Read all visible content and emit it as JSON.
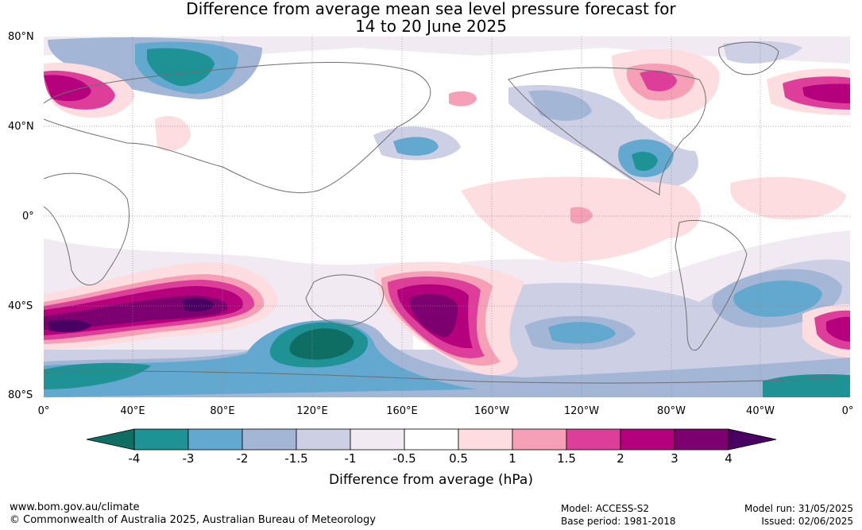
{
  "title": {
    "line1": "Difference from average mean sea level pressure forecast for",
    "line2": "14 to 20 June 2025"
  },
  "map": {
    "lat_labels": [
      "80°N",
      "40°N",
      "0°",
      "40°S",
      "80°S"
    ],
    "lon_labels": [
      "0°",
      "40°E",
      "80°E",
      "120°E",
      "160°E",
      "160°W",
      "120°W",
      "80°W",
      "40°W",
      "0°"
    ]
  },
  "colorbar": {
    "title": "Difference from average (hPa)",
    "labels": [
      "-4",
      "-3",
      "-2",
      "-1.5",
      "-1",
      "-0.5",
      "0.5",
      "1",
      "1.5",
      "2",
      "3",
      "4"
    ],
    "colors": [
      "#0f6e63",
      "#1e9294",
      "#62a8cf",
      "#a4b6d6",
      "#cdcfe5",
      "#f1eaf3",
      "#ffffff",
      "#fddde0",
      "#f5a0b6",
      "#dd3e9a",
      "#b5007d",
      "#7c006f",
      "#4a0063"
    ]
  },
  "footer": {
    "url": "www.bom.gov.au/climate",
    "copyright": "© Commonwealth of Australia 2025, Australian Bureau of Meteorology",
    "model": "Model: ACCESS-S2",
    "base_period": "Base period: 1981-2018",
    "model_run": "Model run: 31/05/2025",
    "issued": "Issued: 02/06/2025"
  }
}
